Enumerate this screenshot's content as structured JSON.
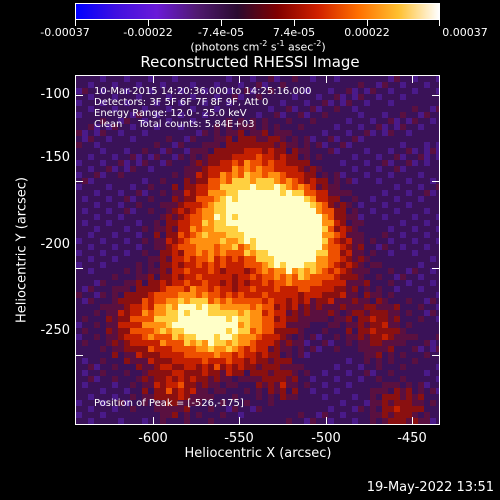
{
  "colorbar": {
    "labels": [
      "-0.00037",
      "-0.00022",
      "-7.4e-05",
      "7.4e-05",
      "0.00022",
      "0.00037"
    ],
    "units_prefix": "(photons cm",
    "units_exp1": "-2",
    "units_mid": " s",
    "units_exp2": "-1",
    "units_mid2": " asec",
    "units_exp3": "-2",
    "units_suffix": ")"
  },
  "title": "Reconstructed RHESSI Image",
  "info": {
    "line1": "10-Mar-2015 14:20:36.000 to 14:25:16.000",
    "line2": "Detectors: 3F 5F 6F 7F 8F 9F, Att 0",
    "line3": "Energy Range: 12.0 - 25.0 keV",
    "line4": "Clean     Total counts: 5.84E+03"
  },
  "peak": "Position of Peak = [-526,-175]",
  "axes": {
    "xlabel": "Heliocentric X (arcsec)",
    "ylabel": "Heliocentric Y (arcsec)",
    "x_ticks": [
      "-600",
      "-550",
      "-500",
      "-450"
    ],
    "y_ticks": [
      "-100",
      "-150",
      "-200",
      "-250"
    ]
  },
  "datestamp": "19-May-2022 13:51",
  "colors": {
    "scale": [
      "#1010ff",
      "#6a1ad8",
      "#6e2090",
      "#3a1050",
      "#8a1010",
      "#e03000",
      "#ff8000",
      "#ffd040",
      "#ffffe0"
    ]
  }
}
